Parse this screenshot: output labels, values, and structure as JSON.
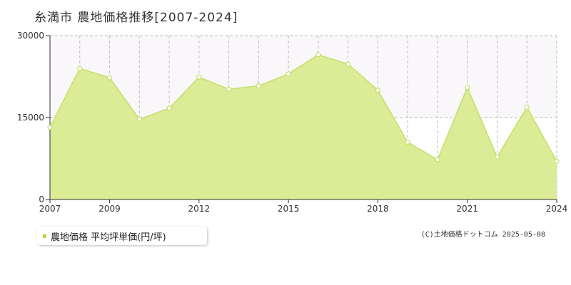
{
  "header": {
    "title": "糸満市 農地価格推移[2007-2024]"
  },
  "legend": {
    "label": "農地価格 平均坪単価(円/坪)"
  },
  "credit": {
    "text": "(C)土地価格ドットコム 2025-05-08"
  },
  "colors": {
    "fill": "#dbeb96",
    "line": "#c5e06a",
    "marker_fill": "#ffffff",
    "band": "#faf7fa",
    "grid": "#bbbbbb",
    "axis": "#333333",
    "legend_marker": "#b8d84a"
  },
  "chart_data": {
    "type": "area",
    "title": "糸満市 農地価格推移[2007-2024]",
    "xlabel": "",
    "ylabel": "",
    "x": [
      2007,
      2008,
      2009,
      2010,
      2011,
      2012,
      2013,
      2014,
      2015,
      2016,
      2017,
      2018,
      2019,
      2020,
      2021,
      2022,
      2023,
      2024
    ],
    "series": [
      {
        "name": "農地価格 平均坪単価(円/坪)",
        "values": [
          13200,
          24000,
          22300,
          14700,
          16700,
          22400,
          20200,
          20800,
          23000,
          26500,
          24800,
          20000,
          10500,
          7300,
          20500,
          7800,
          16900,
          7000
        ]
      }
    ],
    "xlim": [
      2007,
      2024
    ],
    "ylim": [
      0,
      30000
    ],
    "x_ticks": [
      "2007",
      "2009",
      "2012",
      "2015",
      "2018",
      "2021",
      "2024"
    ],
    "y_ticks": [
      "0",
      "15000",
      "30000"
    ],
    "grid": true,
    "legend_position": "bottom-left"
  }
}
